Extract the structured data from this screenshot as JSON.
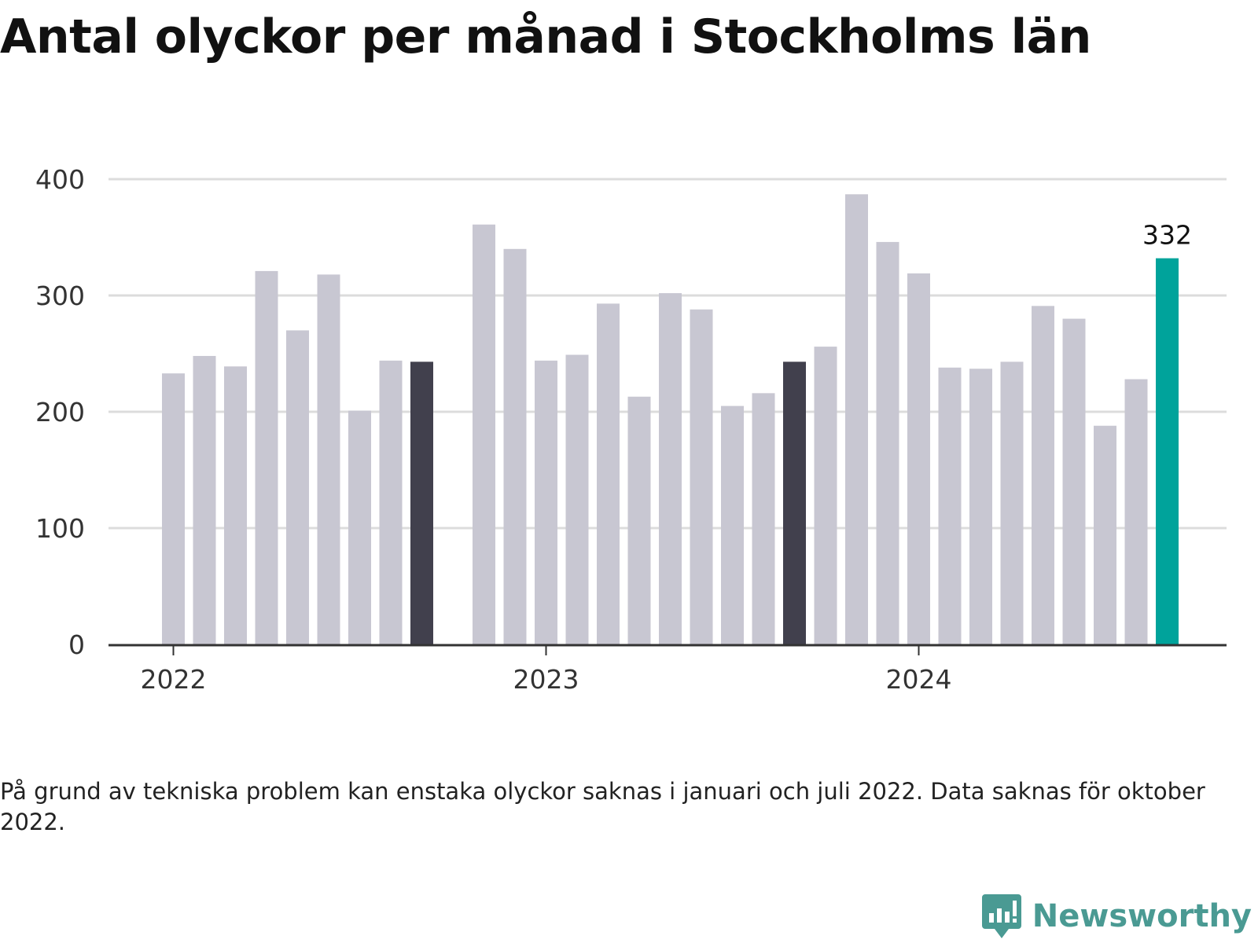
{
  "title": "Antal olyckor per månad i Stockholms län",
  "note": "På grund av tekniska problem kan enstaka olyckor saknas i januari och juli 2022. Data saknas för oktober 2022.",
  "brand": {
    "name": "Newsworthy",
    "icon": "newsworthy-logo-icon"
  },
  "colors": {
    "default": "#c8c7d2",
    "highlight_dark": "#41404d",
    "highlight_latest": "#00a39b",
    "grid": "#dcdcdc",
    "axis": "#333333"
  },
  "chart_data": {
    "type": "bar",
    "title": "Antal olyckor per månad i Stockholms län",
    "xlabel": "",
    "ylabel": "",
    "ylim": [
      0,
      400
    ],
    "yticks": [
      0,
      100,
      200,
      300,
      400
    ],
    "xtick_labels": [
      {
        "label": "2022",
        "month": "2022-01"
      },
      {
        "label": "2023",
        "month": "2023-01"
      },
      {
        "label": "2024",
        "month": "2024-01"
      }
    ],
    "grid": true,
    "categories": [
      "2022-01",
      "2022-02",
      "2022-03",
      "2022-04",
      "2022-05",
      "2022-06",
      "2022-07",
      "2022-08",
      "2022-09",
      "2022-10",
      "2022-11",
      "2022-12",
      "2023-01",
      "2023-02",
      "2023-03",
      "2023-04",
      "2023-05",
      "2023-06",
      "2023-07",
      "2023-08",
      "2023-09",
      "2023-10",
      "2023-11",
      "2023-12",
      "2024-01",
      "2024-02",
      "2024-03",
      "2024-04",
      "2024-05",
      "2024-06",
      "2024-07",
      "2024-08",
      "2024-09"
    ],
    "values": [
      233,
      248,
      239,
      321,
      270,
      318,
      201,
      244,
      243,
      null,
      361,
      340,
      244,
      249,
      293,
      213,
      302,
      288,
      205,
      216,
      243,
      256,
      387,
      346,
      319,
      238,
      237,
      243,
      291,
      280,
      188,
      228,
      332
    ],
    "highlight_dark": [
      "2022-09",
      "2023-09"
    ],
    "highlight_latest": "2024-09",
    "data_labels": [
      {
        "month": "2024-09",
        "text": "332"
      }
    ]
  }
}
